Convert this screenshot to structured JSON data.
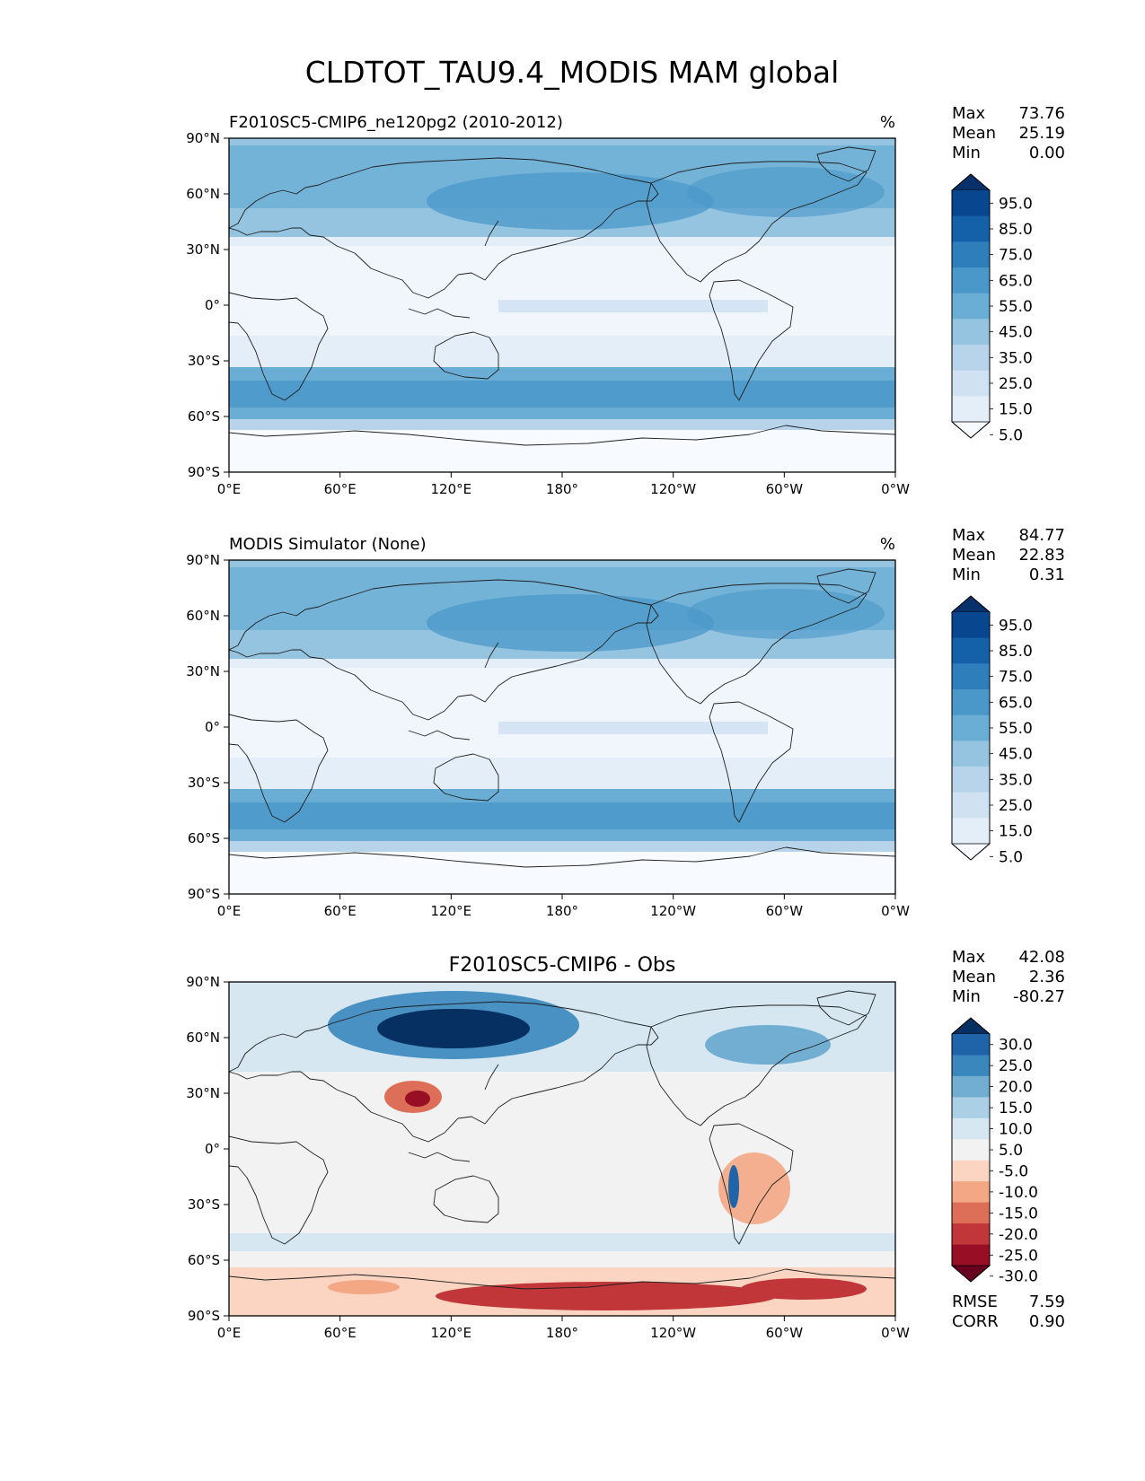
{
  "title": "CLDTOT_TAU9.4_MODIS MAM global",
  "axes": {
    "lat_ticks": [
      "90°N",
      "60°N",
      "30°N",
      "0°",
      "30°S",
      "60°S",
      "90°S"
    ],
    "lon_ticks": [
      "0°E",
      "60°E",
      "120°E",
      "180°",
      "120°W",
      "60°W",
      "0°W"
    ]
  },
  "panels": [
    {
      "title": "F2010SC5-CMIP6_ne120pg2 (2010-2012)",
      "units": "%",
      "stats": [
        {
          "label": "Max",
          "value": "73.76"
        },
        {
          "label": "Mean",
          "value": "25.19"
        },
        {
          "label": "Min",
          "value": "0.00"
        }
      ],
      "colorbar": {
        "labels": [
          "95.0",
          "85.0",
          "75.0",
          "65.0",
          "55.0",
          "45.0",
          "35.0",
          "25.0",
          "15.0",
          "5.0"
        ],
        "colors": [
          "#08306b",
          "#08468f",
          "#1561a9",
          "#2e7ebc",
          "#4a98c9",
          "#6aaed6",
          "#94c4df",
          "#b7d4ea",
          "#d0e1f2",
          "#e3eef9",
          "#f7fbff"
        ]
      }
    },
    {
      "title": "MODIS Simulator (None)",
      "units": "%",
      "stats": [
        {
          "label": "Max",
          "value": "84.77"
        },
        {
          "label": "Mean",
          "value": "22.83"
        },
        {
          "label": "Min",
          "value": "0.31"
        }
      ],
      "colorbar": {
        "labels": [
          "95.0",
          "85.0",
          "75.0",
          "65.0",
          "55.0",
          "45.0",
          "35.0",
          "25.0",
          "15.0",
          "5.0"
        ],
        "colors": [
          "#08306b",
          "#08468f",
          "#1561a9",
          "#2e7ebc",
          "#4a98c9",
          "#6aaed6",
          "#94c4df",
          "#b7d4ea",
          "#d0e1f2",
          "#e3eef9",
          "#f7fbff"
        ]
      }
    },
    {
      "title": "F2010SC5-CMIP6 - Obs",
      "units": "",
      "stats": [
        {
          "label": "Max",
          "value": "42.08"
        },
        {
          "label": "Mean",
          "value": "2.36"
        },
        {
          "label": "Min",
          "value": "-80.27"
        }
      ],
      "colorbar": {
        "labels": [
          "30.0",
          "25.0",
          "20.0",
          "15.0",
          "10.0",
          "5.0",
          "-5.0",
          "-10.0",
          "-15.0",
          "-20.0",
          "-25.0",
          "-30.0"
        ],
        "colors": [
          "#053061",
          "#1f63a8",
          "#3a87bd",
          "#71aed2",
          "#abd0e6",
          "#d6e7f1",
          "#f2f2f2",
          "#fbd5c2",
          "#f3a784",
          "#dd6f58",
          "#c13639",
          "#980f25",
          "#67001f"
        ]
      },
      "extra_stats": [
        {
          "label": "RMSE",
          "value": "7.59"
        },
        {
          "label": "CORR",
          "value": "0.90"
        }
      ]
    }
  ]
}
